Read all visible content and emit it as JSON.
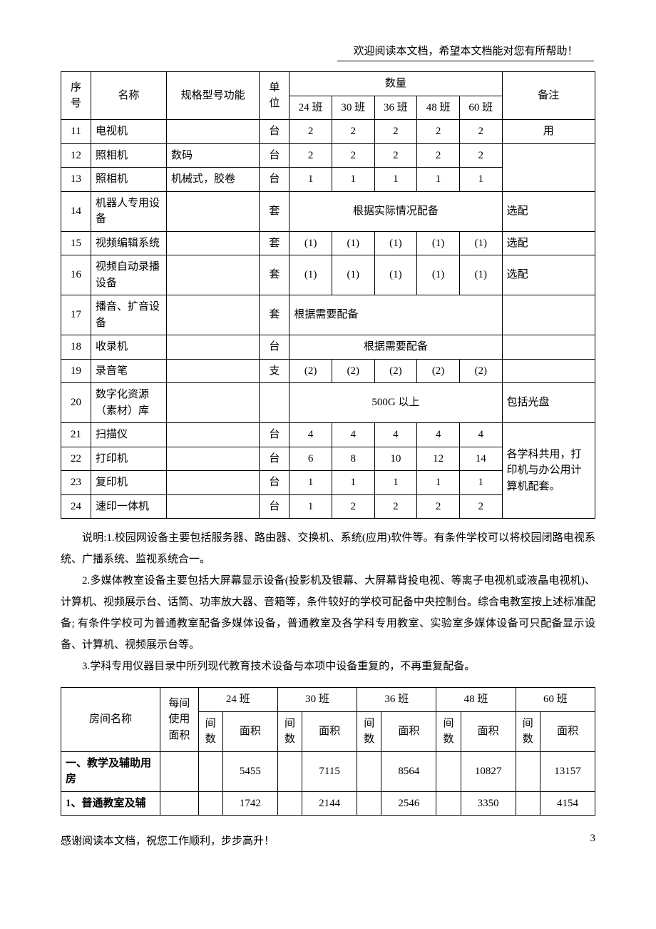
{
  "header": "欢迎阅读本文档，希望本文档能对您有所帮助！",
  "table1": {
    "head": {
      "seq": "序号",
      "name": "名称",
      "spec": "规格型号功能",
      "unit": "单位",
      "qty": "数量",
      "cols": [
        "24 班",
        "30 班",
        "36 班",
        "48 班",
        "60 班"
      ],
      "remark": "备注"
    },
    "rows": [
      {
        "seq": "11",
        "name": "电视机",
        "spec": "",
        "unit": "台",
        "q": [
          "2",
          "2",
          "2",
          "2",
          "2"
        ],
        "note": "用",
        "noteRowspan": 1
      },
      {
        "seq": "12",
        "name": "照相机",
        "spec": "数码",
        "unit": "台",
        "q": [
          "2",
          "2",
          "2",
          "2",
          "2"
        ],
        "note": "",
        "noteRowspan": 2
      },
      {
        "seq": "13",
        "name": "照相机",
        "spec": "机械式，胶卷",
        "unit": "台",
        "q": [
          "1",
          "1",
          "1",
          "1",
          "1"
        ]
      },
      {
        "seq": "14",
        "name": "机器人专用设备",
        "spec": "",
        "unit": "套",
        "merged": "根据实际情况配备",
        "note": "选配"
      },
      {
        "seq": "15",
        "name": "视频编辑系统",
        "spec": "",
        "unit": "套",
        "q": [
          "(1)",
          "(1)",
          "(1)",
          "(1)",
          "(1)"
        ],
        "note": "选配"
      },
      {
        "seq": "16",
        "name": "视频自动录播设备",
        "spec": "",
        "unit": "套",
        "q": [
          "(1)",
          "(1)",
          "(1)",
          "(1)",
          "(1)"
        ],
        "note": "选配"
      },
      {
        "seq": "17",
        "name": "播音、扩音设备",
        "spec": "",
        "unit": "套",
        "merged": "根据需要配备",
        "mergedAlign": "left",
        "note": ""
      },
      {
        "seq": "18",
        "name": "收录机",
        "spec": "",
        "unit": "台",
        "merged": "根据需要配备",
        "note": ""
      },
      {
        "seq": "19",
        "name": "录音笔",
        "spec": "",
        "unit": "支",
        "q": [
          "(2)",
          "(2)",
          "(2)",
          "(2)",
          "(2)"
        ],
        "note": ""
      },
      {
        "seq": "20",
        "name": "数字化资源（素材）库",
        "spec": "",
        "unit": "",
        "merged": "500G 以上",
        "note": "包括光盘"
      },
      {
        "seq": "21",
        "name": "扫描仪",
        "spec": "",
        "unit": "台",
        "q": [
          "4",
          "4",
          "4",
          "4",
          "4"
        ],
        "noteGroupStart": true,
        "noteGroup": "各学科共用，打印机与办公用计算机配套。",
        "noteGroupSpan": 4
      },
      {
        "seq": "22",
        "name": "打印机",
        "spec": "",
        "unit": "台",
        "q": [
          "6",
          "8",
          "10",
          "12",
          "14"
        ]
      },
      {
        "seq": "23",
        "name": "复印机",
        "spec": "",
        "unit": "台",
        "q": [
          "1",
          "1",
          "1",
          "1",
          "1"
        ]
      },
      {
        "seq": "24",
        "name": "速印一体机",
        "spec": "",
        "unit": "台",
        "q": [
          "1",
          "2",
          "2",
          "2",
          "2"
        ]
      }
    ]
  },
  "notes": {
    "p1": "说明:1.校园网设备主要包括服务器、路由器、交换机、系统(应用)软件等。有条件学校可以将校园闭路电视系统、广播系统、监视系统合一。",
    "p2": "2.多媒体教室设备主要包括大屏幕显示设备(投影机及银幕、大屏幕背投电视、等离子电视机或液晶电视机)、计算机、视频展示台、话筒、功率放大器、音箱等，条件较好的学校可配备中央控制台。综合电教室按上述标准配备; 有条件学校可为普通教室配备多媒体设备，普通教室及各学科专用教室、实验室多媒体设备可只配备显示设备、计算机、视频展示台等。",
    "p3": "3.学科专用仪器目录中所列现代教育技术设备与本项中设备重复的，不再重复配备。"
  },
  "table2": {
    "head": {
      "room": "房间名称",
      "area_each": "每间使用面积",
      "classes": [
        "24 班",
        "30 班",
        "36 班",
        "48 班",
        "60 班"
      ],
      "count": "间数",
      "area": "面积"
    },
    "rows": [
      {
        "name": "一、教学及辅助用房",
        "vals": [
          "",
          "",
          "5455",
          "",
          "7115",
          "",
          "8564",
          "",
          "10827",
          "",
          "13157"
        ]
      },
      {
        "name": "1、普通教室及辅",
        "vals": [
          "",
          "",
          "1742",
          "",
          "2144",
          "",
          "2546",
          "",
          "3350",
          "",
          "4154"
        ]
      }
    ]
  },
  "footer": {
    "left": "感谢阅读本文档，祝您工作顺利，步步高升！",
    "page": "3"
  },
  "widths": {
    "t1": {
      "seq": 38,
      "name": 96,
      "spec": 118,
      "unit": 38,
      "q": 54,
      "note": 118
    },
    "t2": {
      "room": 130,
      "each": 50,
      "count": 32,
      "area": 72
    }
  }
}
